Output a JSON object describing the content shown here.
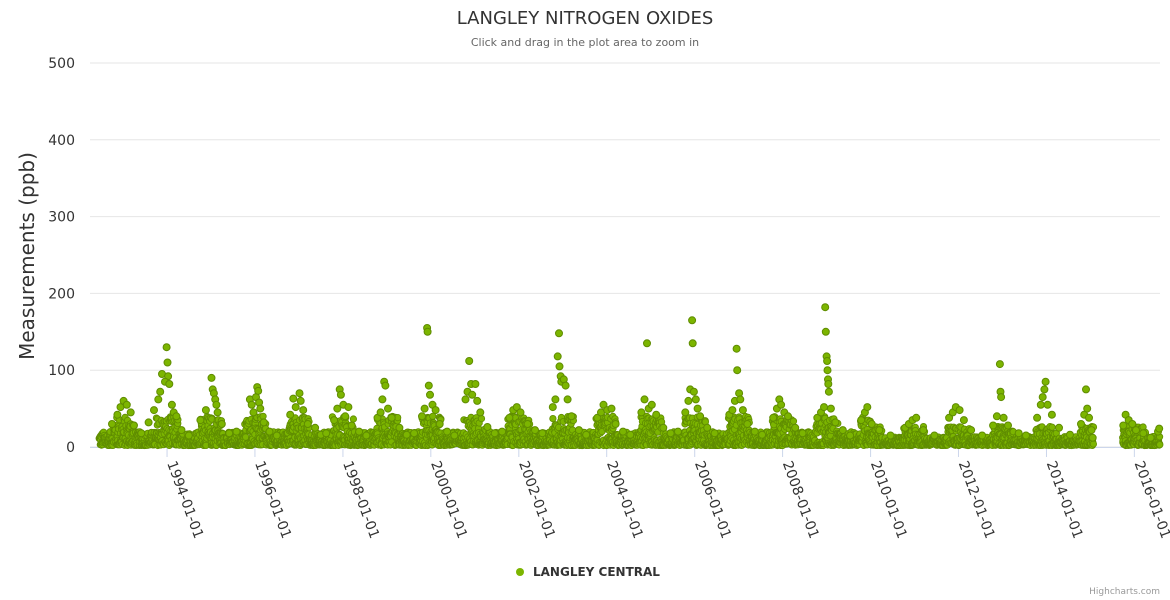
{
  "chart_data": {
    "type": "scatter",
    "title": "LANGLEY NITROGEN OXIDES",
    "subtitle": "Click and drag in the plot area to zoom in",
    "ylabel": "Measurements (ppb)",
    "xlabel": "",
    "ylim": [
      0,
      500
    ],
    "yticks": [
      "0",
      "100",
      "200",
      "300",
      "400",
      "500"
    ],
    "xlim": [
      "1992-04-01",
      "2016-08-01"
    ],
    "xticks": [
      "1994-01-01",
      "1996-01-01",
      "1998-01-01",
      "2000-01-01",
      "2002-01-01",
      "2004-01-01",
      "2006-01-01",
      "2008-01-01",
      "2010-01-01",
      "2012-01-01",
      "2014-01-01",
      "2016-01-01"
    ],
    "grid": true,
    "legend_position": "bottom-center",
    "series": [
      {
        "name": "LANGLEY CENTRAL",
        "color": "#7cb500",
        "points": [
          [
            "1993-11-20",
            95
          ],
          [
            "1993-12-28",
            130
          ],
          [
            "1994-01-05",
            110
          ],
          [
            "1994-01-10",
            92
          ],
          [
            "1993-12-15",
            85
          ],
          [
            "1994-01-20",
            82
          ],
          [
            "1993-11-05",
            72
          ],
          [
            "1993-10-20",
            62
          ],
          [
            "1994-02-10",
            55
          ],
          [
            "1994-02-25",
            45
          ],
          [
            "1994-03-20",
            40
          ],
          [
            "1993-09-15",
            48
          ],
          [
            "1992-10-01",
            30
          ],
          [
            "1992-11-15",
            42
          ],
          [
            "1992-12-10",
            52
          ],
          [
            "1993-01-05",
            60
          ],
          [
            "1993-02-01",
            55
          ],
          [
            "1993-03-05",
            45
          ],
          [
            "1993-04-01",
            28
          ],
          [
            "1993-06-01",
            18
          ],
          [
            "1993-08-01",
            32
          ],
          [
            "1994-05-01",
            22
          ],
          [
            "1994-07-01",
            15
          ],
          [
            "1994-10-05",
            35
          ],
          [
            "1994-11-20",
            48
          ],
          [
            "1995-01-05",
            90
          ],
          [
            "1995-01-15",
            75
          ],
          [
            "1995-01-25",
            70
          ],
          [
            "1995-02-05",
            62
          ],
          [
            "1995-02-15",
            55
          ],
          [
            "1995-02-25",
            45
          ],
          [
            "1995-04-01",
            30
          ],
          [
            "1995-06-01",
            18
          ],
          [
            "1995-08-01",
            20
          ],
          [
            "1995-11-20",
            62
          ],
          [
            "1995-12-05",
            55
          ],
          [
            "1995-12-20",
            45
          ],
          [
            "1996-01-10",
            65
          ],
          [
            "1996-01-20",
            78
          ],
          [
            "1996-01-28",
            73
          ],
          [
            "1996-02-05",
            58
          ],
          [
            "1996-02-15",
            50
          ],
          [
            "1996-03-15",
            32
          ],
          [
            "1996-05-01",
            20
          ],
          [
            "1996-07-01",
            15
          ],
          [
            "1996-10-20",
            42
          ],
          [
            "1996-11-15",
            63
          ],
          [
            "1996-12-05",
            52
          ],
          [
            "1997-01-05",
            70
          ],
          [
            "1997-01-15",
            60
          ],
          [
            "1997-02-05",
            48
          ],
          [
            "1997-03-15",
            30
          ],
          [
            "1997-05-15",
            25
          ],
          [
            "1997-07-01",
            16
          ],
          [
            "1997-08-15",
            18
          ],
          [
            "1997-10-20",
            35
          ],
          [
            "1997-11-15",
            50
          ],
          [
            "1997-12-05",
            75
          ],
          [
            "1997-12-15",
            68
          ],
          [
            "1998-01-05",
            55
          ],
          [
            "1998-01-20",
            40
          ],
          [
            "1998-02-15",
            52
          ],
          [
            "1998-03-15",
            28
          ],
          [
            "1998-05-15",
            20
          ],
          [
            "1998-07-15",
            15
          ],
          [
            "1998-10-15",
            38
          ],
          [
            "1998-11-10",
            45
          ],
          [
            "1998-11-25",
            62
          ],
          [
            "1998-12-10",
            85
          ],
          [
            "1998-12-20",
            80
          ],
          [
            "1999-01-10",
            50
          ],
          [
            "1999-02-10",
            38
          ],
          [
            "1999-04-15",
            25
          ],
          [
            "1999-06-15",
            16
          ],
          [
            "1999-08-15",
            18
          ],
          [
            "1999-10-20",
            40
          ],
          [
            "1999-11-10",
            50
          ],
          [
            "1999-12-01",
            155
          ],
          [
            "1999-12-05",
            150
          ],
          [
            "1999-12-15",
            80
          ],
          [
            "1999-12-25",
            68
          ],
          [
            "2000-01-15",
            55
          ],
          [
            "2000-02-10",
            48
          ],
          [
            "2000-03-15",
            30
          ],
          [
            "2000-05-15",
            20
          ],
          [
            "2000-07-15",
            15
          ],
          [
            "2000-10-15",
            62
          ],
          [
            "2000-11-01",
            72
          ],
          [
            "2000-11-15",
            112
          ],
          [
            "2000-12-01",
            82
          ],
          [
            "2000-12-10",
            68
          ],
          [
            "2001-01-05",
            82
          ],
          [
            "2001-01-20",
            60
          ],
          [
            "2001-02-15",
            45
          ],
          [
            "2001-04-15",
            26
          ],
          [
            "2001-06-15",
            18
          ],
          [
            "2001-08-15",
            20
          ],
          [
            "2001-10-15",
            38
          ],
          [
            "2001-11-15",
            48
          ],
          [
            "2001-12-15",
            52
          ],
          [
            "2002-01-15",
            45
          ],
          [
            "2002-03-15",
            30
          ],
          [
            "2002-05-15",
            22
          ],
          [
            "2002-07-15",
            18
          ],
          [
            "2002-10-10",
            52
          ],
          [
            "2002-11-01",
            62
          ],
          [
            "2002-11-20",
            118
          ],
          [
            "2002-12-01",
            148
          ],
          [
            "2002-12-05",
            105
          ],
          [
            "2002-12-15",
            92
          ],
          [
            "2002-12-20",
            85
          ],
          [
            "2003-01-10",
            88
          ],
          [
            "2003-01-25",
            80
          ],
          [
            "2003-02-10",
            62
          ],
          [
            "2003-03-15",
            40
          ],
          [
            "2003-05-15",
            22
          ],
          [
            "2003-07-15",
            16
          ],
          [
            "2003-10-15",
            38
          ],
          [
            "2003-11-15",
            45
          ],
          [
            "2003-12-05",
            55
          ],
          [
            "2004-01-05",
            48
          ],
          [
            "2004-02-10",
            50
          ],
          [
            "2004-03-15",
            30
          ],
          [
            "2004-05-15",
            20
          ],
          [
            "2004-07-15",
            16
          ],
          [
            "2004-10-15",
            45
          ],
          [
            "2004-11-10",
            62
          ],
          [
            "2004-12-01",
            135
          ],
          [
            "2004-12-15",
            50
          ],
          [
            "2005-01-10",
            55
          ],
          [
            "2005-02-15",
            42
          ],
          [
            "2005-04-15",
            25
          ],
          [
            "2005-06-15",
            18
          ],
          [
            "2005-08-15",
            20
          ],
          [
            "2005-10-15",
            45
          ],
          [
            "2005-11-10",
            60
          ],
          [
            "2005-11-25",
            75
          ],
          [
            "2005-12-10",
            165
          ],
          [
            "2005-12-15",
            135
          ],
          [
            "2005-12-25",
            72
          ],
          [
            "2006-01-10",
            62
          ],
          [
            "2006-01-25",
            50
          ],
          [
            "2006-02-15",
            40
          ],
          [
            "2006-04-15",
            25
          ],
          [
            "2006-06-15",
            18
          ],
          [
            "2006-10-15",
            42
          ],
          [
            "2006-11-10",
            48
          ],
          [
            "2006-12-01",
            60
          ],
          [
            "2006-12-15",
            128
          ],
          [
            "2006-12-20",
            100
          ],
          [
            "2007-01-05",
            70
          ],
          [
            "2007-01-15",
            62
          ],
          [
            "2007-02-05",
            48
          ],
          [
            "2007-03-15",
            30
          ],
          [
            "2007-05-15",
            20
          ],
          [
            "2007-07-15",
            16
          ],
          [
            "2007-10-15",
            38
          ],
          [
            "2007-11-15",
            50
          ],
          [
            "2007-12-05",
            62
          ],
          [
            "2007-12-20",
            55
          ],
          [
            "2008-01-15",
            45
          ],
          [
            "2008-02-15",
            40
          ],
          [
            "2008-04-15",
            25
          ],
          [
            "2008-06-15",
            18
          ],
          [
            "2008-10-15",
            38
          ],
          [
            "2008-11-15",
            45
          ],
          [
            "2008-12-10",
            52
          ],
          [
            "2008-12-20",
            182
          ],
          [
            "2008-12-25",
            150
          ],
          [
            "2009-01-01",
            118
          ],
          [
            "2009-01-05",
            112
          ],
          [
            "2009-01-08",
            100
          ],
          [
            "2009-01-12",
            88
          ],
          [
            "2009-01-15",
            82
          ],
          [
            "2009-01-20",
            72
          ],
          [
            "2009-02-05",
            50
          ],
          [
            "2009-03-15",
            32
          ],
          [
            "2009-05-15",
            22
          ],
          [
            "2009-07-15",
            15
          ],
          [
            "2009-10-15",
            35
          ],
          [
            "2009-11-15",
            45
          ],
          [
            "2009-12-05",
            52
          ],
          [
            "2010-01-10",
            30
          ],
          [
            "2010-03-15",
            22
          ],
          [
            "2010-06-15",
            15
          ],
          [
            "2010-10-15",
            25
          ],
          [
            "2010-11-15",
            30
          ],
          [
            "2010-12-15",
            35
          ],
          [
            "2011-01-15",
            38
          ],
          [
            "2011-03-15",
            22
          ],
          [
            "2011-06-15",
            15
          ],
          [
            "2011-10-15",
            38
          ],
          [
            "2011-11-15",
            45
          ],
          [
            "2011-12-10",
            52
          ],
          [
            "2012-01-10",
            48
          ],
          [
            "2012-02-15",
            35
          ],
          [
            "2012-04-15",
            22
          ],
          [
            "2012-07-15",
            15
          ],
          [
            "2012-10-15",
            28
          ],
          [
            "2012-11-15",
            40
          ],
          [
            "2012-12-10",
            108
          ],
          [
            "2012-12-15",
            72
          ],
          [
            "2012-12-20",
            65
          ],
          [
            "2013-01-10",
            38
          ],
          [
            "2013-02-15",
            28
          ],
          [
            "2013-05-15",
            18
          ],
          [
            "2013-07-15",
            15
          ],
          [
            "2013-10-15",
            38
          ],
          [
            "2013-11-15",
            55
          ],
          [
            "2013-12-01",
            65
          ],
          [
            "2013-12-15",
            75
          ],
          [
            "2013-12-25",
            85
          ],
          [
            "2014-01-10",
            55
          ],
          [
            "2014-02-15",
            42
          ],
          [
            "2014-04-15",
            25
          ],
          [
            "2014-07-15",
            16
          ],
          [
            "2014-10-15",
            30
          ],
          [
            "2014-11-10",
            42
          ],
          [
            "2014-11-25",
            75
          ],
          [
            "2014-12-05",
            50
          ],
          [
            "2014-12-20",
            38
          ],
          [
            "2015-01-10",
            22
          ],
          [
            "2015-01-20",
            12
          ],
          [
            "2015-10-01",
            28
          ],
          [
            "2015-10-20",
            42
          ],
          [
            "2015-11-15",
            35
          ],
          [
            "2015-12-15",
            30
          ],
          [
            "2016-01-15",
            22
          ],
          [
            "2016-03-15",
            18
          ],
          [
            "2016-05-15",
            12
          ],
          [
            "2016-07-15",
            20
          ],
          [
            "2016-07-25",
            24
          ]
        ]
      }
    ]
  },
  "credits": "Highcharts.com"
}
